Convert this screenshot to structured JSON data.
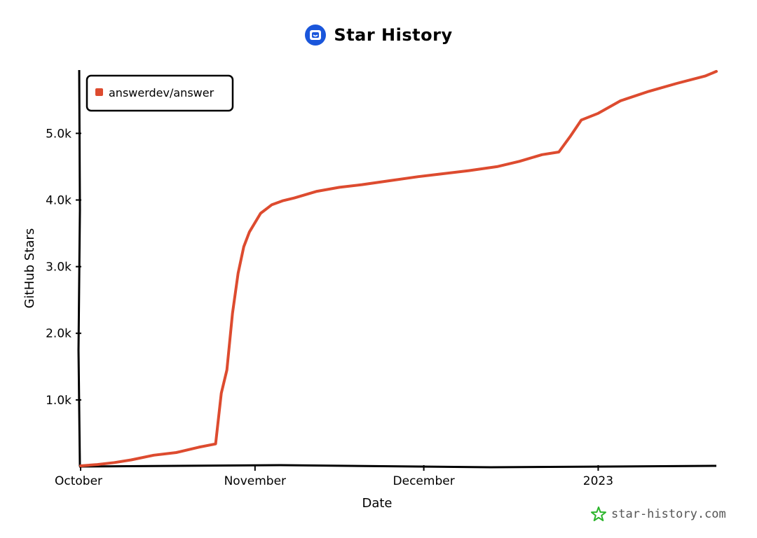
{
  "header": {
    "title": "Star History",
    "logo_icon": "star-history-logo-icon",
    "accent": "#1a56db"
  },
  "watermark": {
    "text": "star-history.com",
    "icon": "star-icon",
    "color": "#2bb52b"
  },
  "chart_data": {
    "type": "line",
    "title": "Star History",
    "xlabel": "Date",
    "ylabel": "GitHub Stars",
    "x_tick_labels": [
      "October",
      "November",
      "December",
      "2023"
    ],
    "x_ticks": [
      "2022-10-01",
      "2022-11-01",
      "2022-12-01",
      "2023-01-01"
    ],
    "xlim": [
      "2022-10-01",
      "2023-01-22"
    ],
    "y_tick_labels": [
      "1.0k",
      "2.0k",
      "3.0k",
      "4.0k",
      "5.0k"
    ],
    "y_ticks": [
      1000,
      2000,
      3000,
      4000,
      5000
    ],
    "ylim": [
      0,
      5950
    ],
    "grid": false,
    "legend_position": "top-left",
    "series": [
      {
        "name": "answerdev/answer",
        "color": "#dd4b2f",
        "x": [
          "2022-10-01",
          "2022-10-04",
          "2022-10-07",
          "2022-10-10",
          "2022-10-14",
          "2022-10-18",
          "2022-10-22",
          "2022-10-25",
          "2022-10-26",
          "2022-10-27",
          "2022-10-28",
          "2022-10-29",
          "2022-10-30",
          "2022-10-31",
          "2022-11-02",
          "2022-11-04",
          "2022-11-06",
          "2022-11-08",
          "2022-11-12",
          "2022-11-16",
          "2022-11-20",
          "2022-11-25",
          "2022-11-30",
          "2022-12-04",
          "2022-12-09",
          "2022-12-14",
          "2022-12-18",
          "2022-12-22",
          "2022-12-25",
          "2022-12-27",
          "2022-12-29",
          "2023-01-01",
          "2023-01-05",
          "2023-01-10",
          "2023-01-15",
          "2023-01-20",
          "2023-01-22"
        ],
        "y": [
          10,
          30,
          60,
          100,
          170,
          210,
          290,
          340,
          1100,
          1450,
          2300,
          2900,
          3300,
          3520,
          3800,
          3930,
          3990,
          4030,
          4130,
          4190,
          4230,
          4290,
          4350,
          4390,
          4440,
          4500,
          4580,
          4680,
          4720,
          4950,
          5200,
          5300,
          5490,
          5630,
          5750,
          5860,
          5930
        ]
      }
    ]
  }
}
